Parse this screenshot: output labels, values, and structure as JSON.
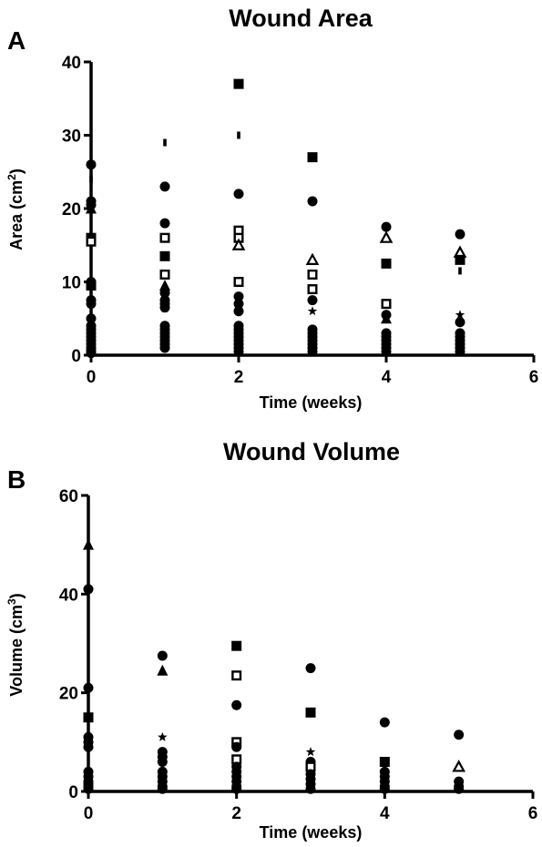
{
  "figure": {
    "panels": [
      {
        "letter": "A",
        "title": "Wound Area",
        "xlabel": "Time (weeks)",
        "ylabel": "Area (cm²)",
        "ylabel_parts": {
          "base": "Area (cm",
          "superscript": "2",
          "suffix": ")"
        }
      },
      {
        "letter": "B",
        "title": "Wound Volume",
        "xlabel": "Time (weeks)",
        "ylabel": "Volume (cm³)",
        "ylabel_parts": {
          "base": "Volume (cm",
          "superscript": "3",
          "suffix": ")"
        }
      }
    ]
  },
  "chart_data": [
    {
      "type": "scatter",
      "title": "Wound Area",
      "xlabel": "Time (weeks)",
      "ylabel": "Area (cm²)",
      "xlim": [
        0,
        6
      ],
      "ylim": [
        0,
        40
      ],
      "xticks": [
        0,
        2,
        4,
        6
      ],
      "yticks": [
        0,
        10,
        20,
        30,
        40
      ],
      "grid": false,
      "legend": "none",
      "marker_color": "#000000",
      "points": [
        {
          "x": 0,
          "y": 26.0,
          "marker": "circle"
        },
        {
          "x": 0,
          "y": 24.0,
          "marker": "small-dash"
        },
        {
          "x": 0,
          "y": 21.0,
          "marker": "circle"
        },
        {
          "x": 0,
          "y": 20.5,
          "marker": "circle"
        },
        {
          "x": 0,
          "y": 20.0,
          "marker": "triangle"
        },
        {
          "x": 0,
          "y": 16.0,
          "marker": "square"
        },
        {
          "x": 0,
          "y": 15.5,
          "marker": "open-square"
        },
        {
          "x": 0,
          "y": 10.0,
          "marker": "circle"
        },
        {
          "x": 0,
          "y": 9.5,
          "marker": "square"
        },
        {
          "x": 0,
          "y": 7.5,
          "marker": "circle"
        },
        {
          "x": 0,
          "y": 7.0,
          "marker": "circle"
        },
        {
          "x": 0,
          "y": 5.0,
          "marker": "circle"
        },
        {
          "x": 0,
          "y": 4.0,
          "marker": "circle"
        },
        {
          "x": 0,
          "y": 3.5,
          "marker": "circle"
        },
        {
          "x": 0,
          "y": 3.0,
          "marker": "circle"
        },
        {
          "x": 0,
          "y": 2.5,
          "marker": "circle"
        },
        {
          "x": 0,
          "y": 2.0,
          "marker": "circle"
        },
        {
          "x": 0,
          "y": 1.5,
          "marker": "circle"
        },
        {
          "x": 0,
          "y": 1.0,
          "marker": "circle"
        },
        {
          "x": 0,
          "y": 0.6,
          "marker": "circle"
        },
        {
          "x": 0,
          "y": 0.3,
          "marker": "circle"
        },
        {
          "x": 1,
          "y": 29.0,
          "marker": "small-dash"
        },
        {
          "x": 1,
          "y": 23.0,
          "marker": "circle"
        },
        {
          "x": 1,
          "y": 18.0,
          "marker": "circle"
        },
        {
          "x": 1,
          "y": 16.0,
          "marker": "open-square"
        },
        {
          "x": 1,
          "y": 13.5,
          "marker": "square"
        },
        {
          "x": 1,
          "y": 11.0,
          "marker": "open-square"
        },
        {
          "x": 1,
          "y": 9.5,
          "marker": "triangle"
        },
        {
          "x": 1,
          "y": 8.5,
          "marker": "circle"
        },
        {
          "x": 1,
          "y": 7.5,
          "marker": "circle"
        },
        {
          "x": 1,
          "y": 7.0,
          "marker": "circle"
        },
        {
          "x": 1,
          "y": 6.5,
          "marker": "circle"
        },
        {
          "x": 1,
          "y": 4.0,
          "marker": "circle"
        },
        {
          "x": 1,
          "y": 3.5,
          "marker": "circle"
        },
        {
          "x": 1,
          "y": 3.0,
          "marker": "circle"
        },
        {
          "x": 1,
          "y": 2.5,
          "marker": "circle"
        },
        {
          "x": 1,
          "y": 2.0,
          "marker": "circle"
        },
        {
          "x": 1,
          "y": 1.5,
          "marker": "circle"
        },
        {
          "x": 1,
          "y": 1.0,
          "marker": "circle"
        },
        {
          "x": 2,
          "y": 37.0,
          "marker": "square"
        },
        {
          "x": 2,
          "y": 30.0,
          "marker": "small-dash"
        },
        {
          "x": 2,
          "y": 22.0,
          "marker": "circle"
        },
        {
          "x": 2,
          "y": 17.0,
          "marker": "open-square"
        },
        {
          "x": 2,
          "y": 16.0,
          "marker": "open-square"
        },
        {
          "x": 2,
          "y": 15.0,
          "marker": "open-triangle"
        },
        {
          "x": 2,
          "y": 10.0,
          "marker": "open-square"
        },
        {
          "x": 2,
          "y": 8.0,
          "marker": "circle"
        },
        {
          "x": 2,
          "y": 7.0,
          "marker": "circle"
        },
        {
          "x": 2,
          "y": 6.0,
          "marker": "circle"
        },
        {
          "x": 2,
          "y": 4.0,
          "marker": "circle"
        },
        {
          "x": 2,
          "y": 3.5,
          "marker": "circle"
        },
        {
          "x": 2,
          "y": 3.0,
          "marker": "circle"
        },
        {
          "x": 2,
          "y": 2.5,
          "marker": "circle"
        },
        {
          "x": 2,
          "y": 2.0,
          "marker": "circle"
        },
        {
          "x": 2,
          "y": 1.5,
          "marker": "circle"
        },
        {
          "x": 2,
          "y": 1.0,
          "marker": "circle"
        },
        {
          "x": 2,
          "y": 0.5,
          "marker": "circle"
        },
        {
          "x": 3,
          "y": 27.0,
          "marker": "square"
        },
        {
          "x": 3,
          "y": 21.0,
          "marker": "circle"
        },
        {
          "x": 3,
          "y": 13.0,
          "marker": "open-triangle"
        },
        {
          "x": 3,
          "y": 11.0,
          "marker": "open-square"
        },
        {
          "x": 3,
          "y": 9.0,
          "marker": "open-square"
        },
        {
          "x": 3,
          "y": 7.5,
          "marker": "circle"
        },
        {
          "x": 3,
          "y": 6.0,
          "marker": "star"
        },
        {
          "x": 3,
          "y": 3.5,
          "marker": "circle"
        },
        {
          "x": 3,
          "y": 3.0,
          "marker": "circle"
        },
        {
          "x": 3,
          "y": 2.5,
          "marker": "circle"
        },
        {
          "x": 3,
          "y": 2.0,
          "marker": "circle"
        },
        {
          "x": 3,
          "y": 1.5,
          "marker": "circle"
        },
        {
          "x": 3,
          "y": 1.0,
          "marker": "circle"
        },
        {
          "x": 3,
          "y": 0.5,
          "marker": "circle"
        },
        {
          "x": 4,
          "y": 17.5,
          "marker": "circle"
        },
        {
          "x": 4,
          "y": 16.0,
          "marker": "open-triangle"
        },
        {
          "x": 4,
          "y": 12.5,
          "marker": "square"
        },
        {
          "x": 4,
          "y": 7.0,
          "marker": "open-square"
        },
        {
          "x": 4,
          "y": 5.5,
          "marker": "circle"
        },
        {
          "x": 4,
          "y": 5.0,
          "marker": "triangle"
        },
        {
          "x": 4,
          "y": 3.0,
          "marker": "circle"
        },
        {
          "x": 4,
          "y": 2.5,
          "marker": "circle"
        },
        {
          "x": 4,
          "y": 2.0,
          "marker": "circle"
        },
        {
          "x": 4,
          "y": 1.5,
          "marker": "circle"
        },
        {
          "x": 4,
          "y": 1.0,
          "marker": "circle"
        },
        {
          "x": 4,
          "y": 0.5,
          "marker": "circle"
        },
        {
          "x": 5,
          "y": 16.5,
          "marker": "circle"
        },
        {
          "x": 5,
          "y": 14.0,
          "marker": "open-triangle"
        },
        {
          "x": 5,
          "y": 13.0,
          "marker": "square"
        },
        {
          "x": 5,
          "y": 11.5,
          "marker": "small-dash"
        },
        {
          "x": 5,
          "y": 5.5,
          "marker": "star"
        },
        {
          "x": 5,
          "y": 4.5,
          "marker": "circle"
        },
        {
          "x": 5,
          "y": 3.0,
          "marker": "circle"
        },
        {
          "x": 5,
          "y": 2.5,
          "marker": "circle"
        },
        {
          "x": 5,
          "y": 2.0,
          "marker": "circle"
        },
        {
          "x": 5,
          "y": 1.5,
          "marker": "circle"
        },
        {
          "x": 5,
          "y": 1.0,
          "marker": "circle"
        },
        {
          "x": 5,
          "y": 0.5,
          "marker": "circle"
        }
      ]
    },
    {
      "type": "scatter",
      "title": "Wound Volume",
      "xlabel": "Time (weeks)",
      "ylabel": "Volume (cm³)",
      "xlim": [
        0,
        6
      ],
      "ylim": [
        0,
        60
      ],
      "xticks": [
        0,
        2,
        4,
        6
      ],
      "yticks": [
        0,
        20,
        40,
        60
      ],
      "grid": false,
      "legend": "none",
      "marker_color": "#000000",
      "points": [
        {
          "x": 0,
          "y": 50.0,
          "marker": "triangle"
        },
        {
          "x": 0,
          "y": 41.0,
          "marker": "circle"
        },
        {
          "x": 0,
          "y": 21.0,
          "marker": "circle"
        },
        {
          "x": 0,
          "y": 15.0,
          "marker": "square"
        },
        {
          "x": 0,
          "y": 11.0,
          "marker": "circle"
        },
        {
          "x": 0,
          "y": 10.0,
          "marker": "circle"
        },
        {
          "x": 0,
          "y": 9.0,
          "marker": "circle"
        },
        {
          "x": 0,
          "y": 4.0,
          "marker": "circle"
        },
        {
          "x": 0,
          "y": 3.0,
          "marker": "circle"
        },
        {
          "x": 0,
          "y": 2.0,
          "marker": "circle"
        },
        {
          "x": 0,
          "y": 1.5,
          "marker": "circle"
        },
        {
          "x": 0,
          "y": 1.0,
          "marker": "circle"
        },
        {
          "x": 0,
          "y": 0.5,
          "marker": "circle"
        },
        {
          "x": 1,
          "y": 27.5,
          "marker": "circle"
        },
        {
          "x": 1,
          "y": 24.5,
          "marker": "triangle"
        },
        {
          "x": 1,
          "y": 11.0,
          "marker": "star"
        },
        {
          "x": 1,
          "y": 8.0,
          "marker": "circle"
        },
        {
          "x": 1,
          "y": 7.0,
          "marker": "circle"
        },
        {
          "x": 1,
          "y": 6.0,
          "marker": "circle"
        },
        {
          "x": 1,
          "y": 4.0,
          "marker": "circle"
        },
        {
          "x": 1,
          "y": 3.0,
          "marker": "circle"
        },
        {
          "x": 1,
          "y": 2.0,
          "marker": "circle"
        },
        {
          "x": 1,
          "y": 1.0,
          "marker": "circle"
        },
        {
          "x": 1,
          "y": 0.5,
          "marker": "circle"
        },
        {
          "x": 2,
          "y": 29.5,
          "marker": "square"
        },
        {
          "x": 2,
          "y": 23.5,
          "marker": "open-square"
        },
        {
          "x": 2,
          "y": 17.5,
          "marker": "circle"
        },
        {
          "x": 2,
          "y": 10.0,
          "marker": "open-square"
        },
        {
          "x": 2,
          "y": 9.0,
          "marker": "circle"
        },
        {
          "x": 2,
          "y": 6.5,
          "marker": "open-square"
        },
        {
          "x": 2,
          "y": 5.0,
          "marker": "circle"
        },
        {
          "x": 2,
          "y": 4.0,
          "marker": "circle"
        },
        {
          "x": 2,
          "y": 3.0,
          "marker": "circle"
        },
        {
          "x": 2,
          "y": 2.0,
          "marker": "circle"
        },
        {
          "x": 2,
          "y": 1.0,
          "marker": "circle"
        },
        {
          "x": 2,
          "y": 0.5,
          "marker": "circle"
        },
        {
          "x": 3,
          "y": 25.0,
          "marker": "circle"
        },
        {
          "x": 3,
          "y": 16.0,
          "marker": "square"
        },
        {
          "x": 3,
          "y": 8.0,
          "marker": "star"
        },
        {
          "x": 3,
          "y": 6.0,
          "marker": "circle"
        },
        {
          "x": 3,
          "y": 5.0,
          "marker": "open-square"
        },
        {
          "x": 3,
          "y": 3.5,
          "marker": "circle"
        },
        {
          "x": 3,
          "y": 2.5,
          "marker": "circle"
        },
        {
          "x": 3,
          "y": 1.5,
          "marker": "circle"
        },
        {
          "x": 3,
          "y": 0.5,
          "marker": "circle"
        },
        {
          "x": 4,
          "y": 14.0,
          "marker": "circle"
        },
        {
          "x": 4,
          "y": 6.0,
          "marker": "square"
        },
        {
          "x": 4,
          "y": 4.0,
          "marker": "circle"
        },
        {
          "x": 4,
          "y": 3.0,
          "marker": "circle"
        },
        {
          "x": 4,
          "y": 2.0,
          "marker": "circle"
        },
        {
          "x": 4,
          "y": 1.0,
          "marker": "circle"
        },
        {
          "x": 4,
          "y": 0.5,
          "marker": "circle"
        },
        {
          "x": 5,
          "y": 11.5,
          "marker": "circle"
        },
        {
          "x": 5,
          "y": 5.0,
          "marker": "open-triangle"
        },
        {
          "x": 5,
          "y": 2.0,
          "marker": "circle"
        },
        {
          "x": 5,
          "y": 1.0,
          "marker": "circle"
        },
        {
          "x": 5,
          "y": 0.5,
          "marker": "circle"
        }
      ]
    }
  ]
}
